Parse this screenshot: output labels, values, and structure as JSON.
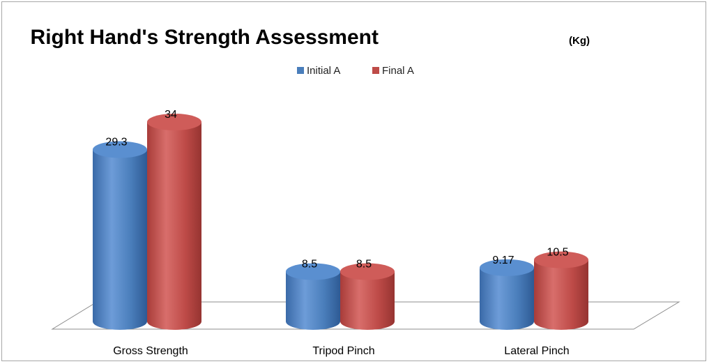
{
  "chart_data": {
    "type": "bar",
    "style": "3d-cylinder",
    "title": "Right Hand's Strength Assessment",
    "title_unit": "(Kg)",
    "categories": [
      "Gross Strength",
      "Tripod Pinch",
      "Lateral Pinch"
    ],
    "series": [
      {
        "name": "Initial A",
        "values": [
          29.3,
          8.5,
          9.17
        ],
        "labels": [
          "29.3",
          "8.5",
          "9.17"
        ],
        "color": "#4a7ebb"
      },
      {
        "name": "Final A",
        "values": [
          34,
          8.5,
          10.5
        ],
        "labels": [
          "34",
          "8.5",
          "10.5"
        ],
        "color": "#be4b48"
      }
    ],
    "ylim": [
      0,
      34
    ],
    "grid": false,
    "legend": "top-center"
  }
}
